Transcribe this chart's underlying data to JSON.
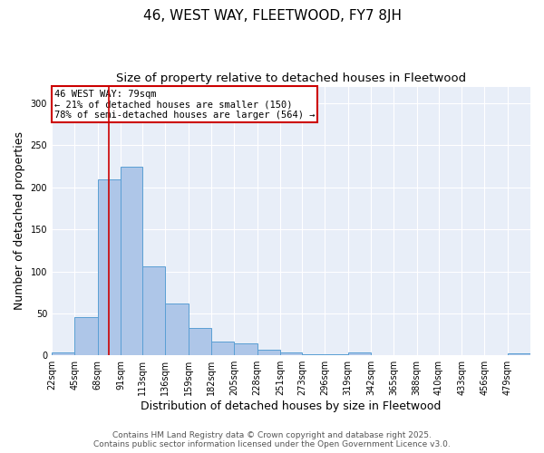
{
  "title": "46, WEST WAY, FLEETWOOD, FY7 8JH",
  "subtitle": "Size of property relative to detached houses in Fleetwood",
  "xlabel": "Distribution of detached houses by size in Fleetwood",
  "ylabel": "Number of detached properties",
  "bin_labels": [
    "22sqm",
    "45sqm",
    "68sqm",
    "91sqm",
    "113sqm",
    "136sqm",
    "159sqm",
    "182sqm",
    "205sqm",
    "228sqm",
    "251sqm",
    "273sqm",
    "296sqm",
    "319sqm",
    "342sqm",
    "365sqm",
    "388sqm",
    "410sqm",
    "433sqm",
    "456sqm",
    "479sqm"
  ],
  "bin_edges": [
    22,
    45,
    68,
    91,
    113,
    136,
    159,
    182,
    205,
    228,
    251,
    273,
    296,
    319,
    342,
    365,
    388,
    410,
    433,
    456,
    479,
    502
  ],
  "values": [
    4,
    46,
    210,
    225,
    106,
    62,
    33,
    16,
    14,
    7,
    4,
    1,
    1,
    3,
    0,
    0,
    0,
    0,
    0,
    0,
    2
  ],
  "bar_color": "#aec6e8",
  "bar_edge_color": "#5a9fd4",
  "property_size": 79,
  "vline_color": "#cc0000",
  "annotation_line1": "46 WEST WAY: 79sqm",
  "annotation_line2": "← 21% of detached houses are smaller (150)",
  "annotation_line3": "78% of semi-detached houses are larger (564) →",
  "annotation_box_color": "#cc0000",
  "ylim": [
    0,
    320
  ],
  "yticks": [
    0,
    50,
    100,
    150,
    200,
    250,
    300
  ],
  "background_color": "#e8eef8",
  "grid_color": "white",
  "footer_line1": "Contains HM Land Registry data © Crown copyright and database right 2025.",
  "footer_line2": "Contains public sector information licensed under the Open Government Licence v3.0.",
  "title_fontsize": 11,
  "subtitle_fontsize": 9.5,
  "xlabel_fontsize": 9,
  "ylabel_fontsize": 9,
  "tick_fontsize": 7,
  "footer_fontsize": 6.5,
  "annot_fontsize": 7.5
}
